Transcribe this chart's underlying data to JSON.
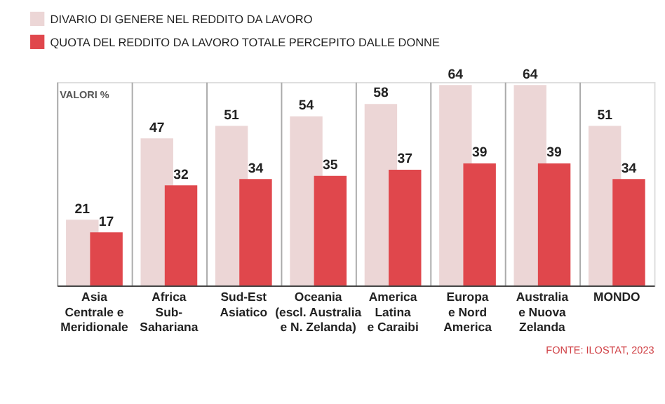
{
  "chart_data": {
    "type": "bar",
    "categories": [
      "Asia\nCentrale e\nMeridionale",
      "Africa\nSub-\nSahariana",
      "Sud-Est\nAsiatico",
      "Oceania\n(escl. Australia\ne N. Zelanda)",
      "America\nLatina\ne Caraibi",
      "Europa\ne Nord\nAmerica",
      "Australia\ne Nuova\nZelanda",
      "MONDO"
    ],
    "series": [
      {
        "name": "DIVARIO DI GENERE NEL REDDITO DA LAVORO",
        "color": "#ecd6d6",
        "values": [
          21,
          47,
          51,
          54,
          58,
          64,
          64,
          51
        ]
      },
      {
        "name": "QUOTA DEL REDDITO DA LAVORO TOTALE PERCEPITO DALLE DONNE",
        "color": "#e0474c",
        "values": [
          17,
          32,
          34,
          35,
          37,
          39,
          39,
          34
        ]
      }
    ],
    "data_labels": true,
    "grid": "x",
    "legend": "top left",
    "annotations": [
      "VALORI %",
      "FONTE: ILOSTAT, 2023"
    ]
  }
}
